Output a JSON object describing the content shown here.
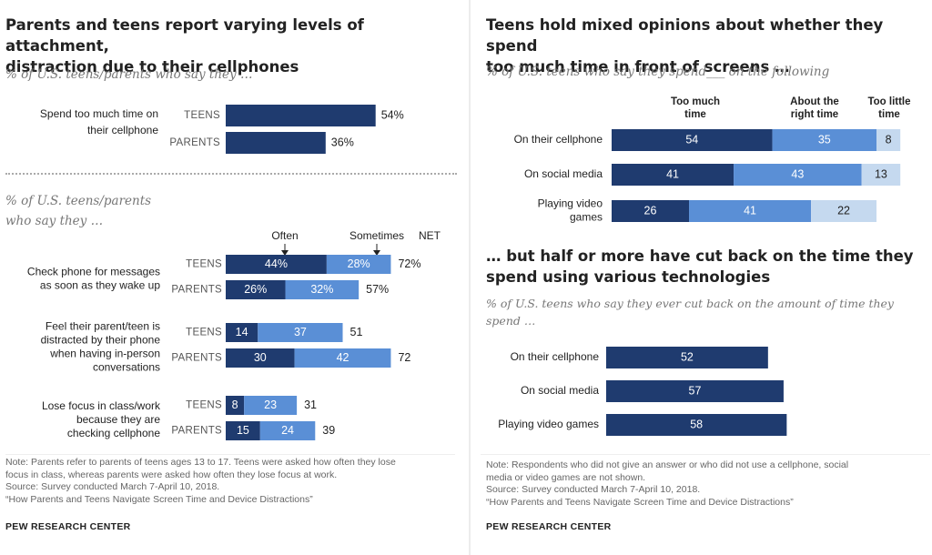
{
  "left": {
    "title_line1": "Parents and teens report varying levels of attachment,",
    "title_line2": "distraction due to their cellphones",
    "subtitle1": "% of U.S. teens/parents who say they …",
    "subtitle2_line1": "% of U.S. teens/parents",
    "subtitle2_line2": "who say they …",
    "legend_often": "Often",
    "legend_sometimes": "Sometimes",
    "legend_net": "NET",
    "note_line1": "Note: Parents refer to parents of teens ages 13 to 17. Teens were asked how often they lose",
    "note_line2": "focus in class, whereas parents were asked how often they lose focus at work.",
    "source": "Source: Survey conducted March 7-April 10, 2018.",
    "report": "“How Parents and Teens Navigate Screen Time and Device Distractions”",
    "brand": "PEW RESEARCH CENTER"
  },
  "right": {
    "title1_line1": "Teens hold mixed opinions about whether they spend",
    "title1_line2": "too much time in front of screens …",
    "subtitle1": "% of U.S. teens who say they spend___ on the following",
    "col_too_much_l1": "Too much",
    "col_too_much_l2": "time",
    "col_about_right_l1": "About the",
    "col_about_right_l2": "right time",
    "col_too_little_l1": "Too little",
    "col_too_little_l2": "time",
    "title2_line1": "… but half or more have cut back on the time they",
    "title2_line2": "spend using various technologies",
    "subtitle2_line1": "% of U.S. teens who say they ever cut back on the amount of time they",
    "subtitle2_line2": "spend …",
    "note_line1": "Note: Respondents who did not give an answer or who did not use a cellphone, social",
    "note_line2": "media or video games are not shown.",
    "source": "Source: Survey conducted March 7-April 10, 2018.",
    "report": "“How Parents and Teens Navigate Screen Time and Device Distractions”",
    "brand": "PEW RESEARCH CENTER"
  },
  "colors": {
    "dark": "#1f3b6f",
    "medium": "#5a8fd6",
    "light": "#c5d9ef",
    "text_dark": "#222222"
  },
  "chart_data": [
    {
      "type": "bar",
      "title": "Parents and teens report varying levels of attachment, distraction due to their cellphones",
      "subtitle": "% of U.S. teens/parents who say they …",
      "categories": [
        "Spend too much time on their cellphone"
      ],
      "series": [
        {
          "name": "TEENS",
          "values": [
            54
          ]
        },
        {
          "name": "PARENTS",
          "values": [
            36
          ]
        }
      ],
      "value_suffix": "%"
    },
    {
      "type": "bar",
      "stacked": true,
      "subtitle": "% of U.S. teens/parents who say they …",
      "groups": [
        {
          "label_lines": [
            "Check phone for messages",
            "as soon as they wake up"
          ],
          "rows": [
            {
              "who": "TEENS",
              "often": 44,
              "sometimes": 28,
              "net": 72
            },
            {
              "who": "PARENTS",
              "often": 26,
              "sometimes": 32,
              "net": 57
            }
          ],
          "percent": true
        },
        {
          "label_lines": [
            "Feel their parent/teen is",
            "distracted by their phone",
            "when having in-person",
            "conversations"
          ],
          "rows": [
            {
              "who": "TEENS",
              "often": 14,
              "sometimes": 37,
              "net": 51
            },
            {
              "who": "PARENTS",
              "often": 30,
              "sometimes": 42,
              "net": 72
            }
          ],
          "percent": false
        },
        {
          "label_lines": [
            "Lose focus in class/work",
            "because they are",
            "checking cellphone"
          ],
          "rows": [
            {
              "who": "TEENS",
              "often": 8,
              "sometimes": 23,
              "net": 31
            },
            {
              "who": "PARENTS",
              "often": 15,
              "sometimes": 24,
              "net": 39
            }
          ],
          "percent": false
        }
      ],
      "legend": [
        "Often",
        "Sometimes",
        "NET"
      ]
    },
    {
      "type": "bar",
      "stacked": true,
      "title": "Teens hold mixed opinions about whether they spend too much time in front of screens …",
      "subtitle": "% of U.S. teens who say they spend___ on the following",
      "categories": [
        [
          "On their cellphone"
        ],
        [
          "On social media"
        ],
        [
          "Playing video",
          "games"
        ]
      ],
      "series": [
        {
          "name": "Too much time",
          "values": [
            54,
            41,
            26
          ]
        },
        {
          "name": "About the right time",
          "values": [
            35,
            43,
            41
          ]
        },
        {
          "name": "Too little time",
          "values": [
            8,
            13,
            22
          ]
        }
      ]
    },
    {
      "type": "bar",
      "title": "… but half or more have cut back on the time they spend using various technologies",
      "subtitle": "% of U.S. teens who say they ever cut back on the amount of time they spend …",
      "categories": [
        "On their cellphone",
        "On social media",
        "Playing video games"
      ],
      "values": [
        52,
        57,
        58
      ]
    }
  ]
}
